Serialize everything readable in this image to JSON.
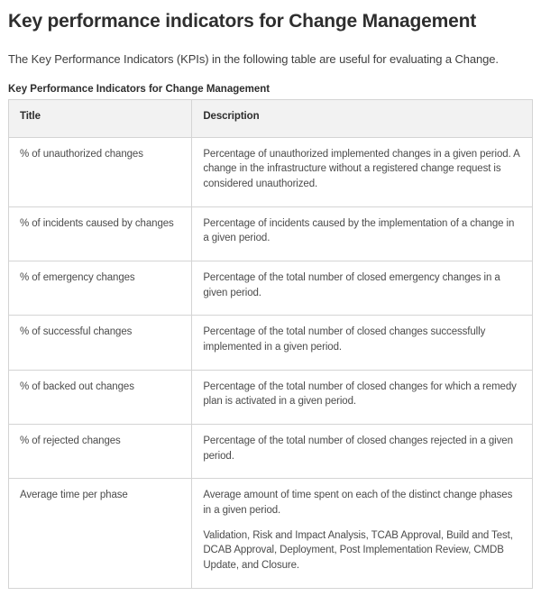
{
  "page": {
    "title": "Key performance indicators for Change Management",
    "intro": "The Key Performance Indicators (KPIs) in the following table are useful for evaluating a Change.",
    "table_caption": "Key Performance Indicators for Change Management"
  },
  "table": {
    "columns": [
      "Title",
      "Description"
    ],
    "rows": [
      {
        "title": "% of unauthorized changes",
        "description": [
          "Percentage of unauthorized implemented changes in a given period. A change in the infrastructure without a registered change request is considered unauthorized."
        ]
      },
      {
        "title": "% of incidents caused by changes",
        "description": [
          "Percentage of incidents caused by the implementation of a change in a given period."
        ]
      },
      {
        "title": "% of emergency changes",
        "description": [
          "Percentage of the total number of closed emergency changes in a given period."
        ]
      },
      {
        "title": "% of successful changes",
        "description": [
          "Percentage of the total number of closed changes successfully implemented in a given period."
        ]
      },
      {
        "title": "% of backed out changes",
        "description": [
          "Percentage of the total number of closed changes for which a remedy plan is activated in a given period."
        ]
      },
      {
        "title": "% of rejected changes",
        "description": [
          "Percentage of the total number of closed changes rejected in a given period."
        ]
      },
      {
        "title": "Average time per phase",
        "description": [
          "Average amount of time spent on each of the distinct change phases in a given period.",
          "Validation, Risk and Impact Analysis, TCAB Approval, Build and Test, DCAB Approval, Deployment, Post Implementation Review, CMDB Update, and Closure."
        ]
      }
    ]
  },
  "colors": {
    "header_bg": "#f2f2f2",
    "border": "#d4d4d4",
    "heading_text": "#2e2e2e",
    "body_text": "#4b4b4b"
  }
}
